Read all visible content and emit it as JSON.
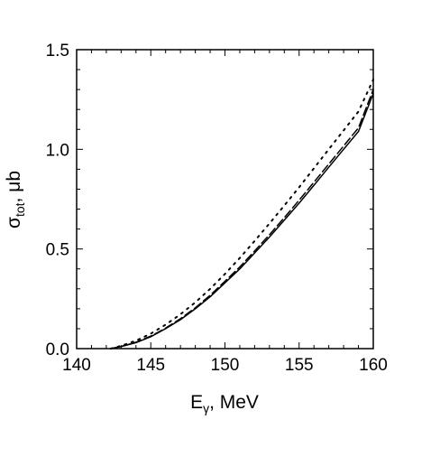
{
  "chart_data": {
    "type": "line",
    "title": "",
    "xlabel": {
      "main": "E",
      "sub": "γ",
      "rest": ", MeV"
    },
    "ylabel": {
      "main": "σ",
      "sub": "tot",
      "rest": ", μb"
    },
    "xlim": [
      140,
      160
    ],
    "ylim": [
      0,
      1.5
    ],
    "xticks": [
      140,
      145,
      150,
      155,
      160
    ],
    "xtick_labels": [
      "140",
      "145",
      "150",
      "155",
      "160"
    ],
    "yticks": [
      0,
      0.5,
      1.0,
      1.5
    ],
    "ytick_labels": [
      "0.0",
      "0.5",
      "1.0",
      "1.5"
    ],
    "grid": false,
    "legend": "none",
    "series": [
      {
        "style": "solid",
        "x": [
          142.3,
          143,
          144,
          145,
          146,
          147,
          148,
          149,
          150,
          151,
          152,
          153,
          154,
          155,
          156,
          157,
          158,
          159,
          160
        ],
        "y": [
          0.0,
          0.01,
          0.03,
          0.06,
          0.1,
          0.145,
          0.2,
          0.26,
          0.33,
          0.4,
          0.48,
          0.56,
          0.645,
          0.73,
          0.82,
          0.91,
          1.0,
          1.09,
          1.28
        ]
      },
      {
        "style": "dashed",
        "x": [
          142.3,
          143,
          144,
          145,
          146,
          147,
          148,
          149,
          150,
          151,
          152,
          153,
          154,
          155,
          156,
          157,
          158,
          159,
          160
        ],
        "y": [
          0.0,
          0.011,
          0.032,
          0.063,
          0.103,
          0.15,
          0.205,
          0.268,
          0.338,
          0.41,
          0.49,
          0.572,
          0.657,
          0.745,
          0.835,
          0.926,
          1.017,
          1.108,
          1.3
        ]
      },
      {
        "style": "dotted",
        "x": [
          142.3,
          143,
          144,
          145,
          146,
          147,
          148,
          149,
          150,
          151,
          152,
          153,
          154,
          155,
          156,
          157,
          158,
          159,
          160
        ],
        "y": [
          0.0,
          0.014,
          0.04,
          0.075,
          0.12,
          0.172,
          0.232,
          0.3,
          0.375,
          0.455,
          0.54,
          0.628,
          0.718,
          0.81,
          0.905,
          1.0,
          1.095,
          1.19,
          1.35
        ]
      }
    ]
  }
}
